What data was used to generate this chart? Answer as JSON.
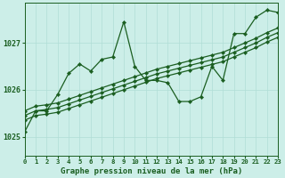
{
  "title": "Graphe pression niveau de la mer (hPa)",
  "bg_color": "#cceee8",
  "grid_color": "#b0ddd6",
  "line_color": "#1a5e20",
  "x_min": 0,
  "x_max": 23,
  "y_min": 1024.6,
  "y_max": 1027.85,
  "y_ticks": [
    1025,
    1026,
    1027
  ],
  "x_ticks": [
    0,
    1,
    2,
    3,
    4,
    5,
    6,
    7,
    8,
    9,
    10,
    11,
    12,
    13,
    14,
    15,
    16,
    17,
    18,
    19,
    20,
    21,
    22,
    23
  ],
  "series": {
    "volatile": [
      1025.1,
      1025.55,
      1025.55,
      1025.9,
      1026.35,
      1026.55,
      1026.4,
      1026.65,
      1026.7,
      1027.45,
      1026.5,
      1026.2,
      1026.2,
      1026.15,
      1025.75,
      1025.75,
      1025.85,
      1026.5,
      1026.2,
      1027.2,
      1027.2,
      1027.55,
      1027.7,
      1027.65
    ],
    "linear1": [
      1025.55,
      1025.65,
      1025.68,
      1025.72,
      1025.8,
      1025.88,
      1025.96,
      1026.04,
      1026.12,
      1026.2,
      1026.28,
      1026.36,
      1026.44,
      1026.5,
      1026.56,
      1026.62,
      1026.68,
      1026.74,
      1026.8,
      1026.9,
      1027.0,
      1027.1,
      1027.22,
      1027.32
    ],
    "linear2": [
      1025.45,
      1025.55,
      1025.58,
      1025.62,
      1025.7,
      1025.78,
      1025.86,
      1025.94,
      1026.02,
      1026.1,
      1026.18,
      1026.26,
      1026.34,
      1026.4,
      1026.46,
      1026.52,
      1026.58,
      1026.64,
      1026.7,
      1026.8,
      1026.9,
      1027.0,
      1027.12,
      1027.22
    ],
    "linear3": [
      1025.35,
      1025.45,
      1025.48,
      1025.52,
      1025.6,
      1025.68,
      1025.76,
      1025.84,
      1025.92,
      1026.0,
      1026.08,
      1026.16,
      1026.24,
      1026.3,
      1026.36,
      1026.42,
      1026.48,
      1026.54,
      1026.6,
      1026.7,
      1026.8,
      1026.9,
      1027.02,
      1027.12
    ]
  },
  "marker": "D",
  "marker_size": 2.2,
  "line_width": 0.9,
  "title_fontsize": 6.5,
  "xtick_fontsize": 5.2,
  "ytick_fontsize": 6.0
}
